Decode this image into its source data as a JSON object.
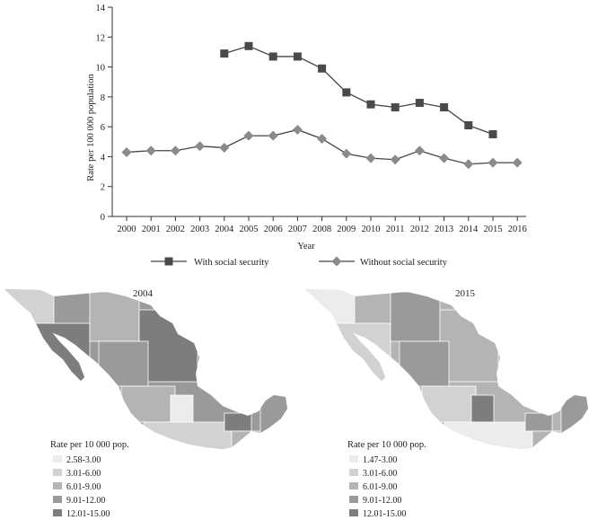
{
  "chart_data": [
    {
      "type": "line",
      "title": "",
      "xlabel": "Year",
      "ylabel": "Rate per 100 000 population",
      "x": [
        "2000",
        "2001",
        "2002",
        "2003",
        "2004",
        "2005",
        "2006",
        "2007",
        "2008",
        "2009",
        "2010",
        "2011",
        "2012",
        "2013",
        "2014",
        "2015",
        "2016"
      ],
      "ylim": [
        0,
        14
      ],
      "yticks": [
        0,
        2,
        4,
        6,
        8,
        10,
        12,
        14
      ],
      "grid": false,
      "legend_position": "bottom",
      "series": [
        {
          "name": "With social security",
          "marker": "square",
          "values": [
            null,
            null,
            null,
            null,
            10.9,
            11.4,
            10.7,
            10.7,
            9.9,
            8.3,
            7.5,
            7.3,
            7.6,
            7.3,
            6.1,
            5.5,
            null
          ]
        },
        {
          "name": "Without social security",
          "marker": "diamond",
          "values": [
            4.3,
            4.4,
            4.4,
            4.7,
            4.6,
            5.4,
            5.4,
            5.8,
            5.2,
            4.2,
            3.9,
            3.8,
            4.4,
            3.9,
            3.5,
            3.6,
            3.6
          ]
        }
      ]
    }
  ],
  "colors": {
    "series_line": "#444444",
    "marker": "#4a4a4a",
    "map_classes": [
      "#ececec",
      "#d2d2d2",
      "#b4b4b4",
      "#9a9a9a",
      "#7d7d7d"
    ]
  },
  "maps": [
    {
      "title": "2004",
      "legend_title": "Rate per 10 000 pop.",
      "legend": [
        "2.58-3.00",
        "3.01-6.00",
        "6.01-9.00",
        "9.01-12.00",
        "12.01-15.00"
      ]
    },
    {
      "title": "2015",
      "legend_title": "Rate per 10 000 pop.",
      "legend": [
        "1.47-3.00",
        "3.01-6.00",
        "6.01-9.00",
        "9.01-12.00",
        "12.01-15.00"
      ]
    }
  ]
}
